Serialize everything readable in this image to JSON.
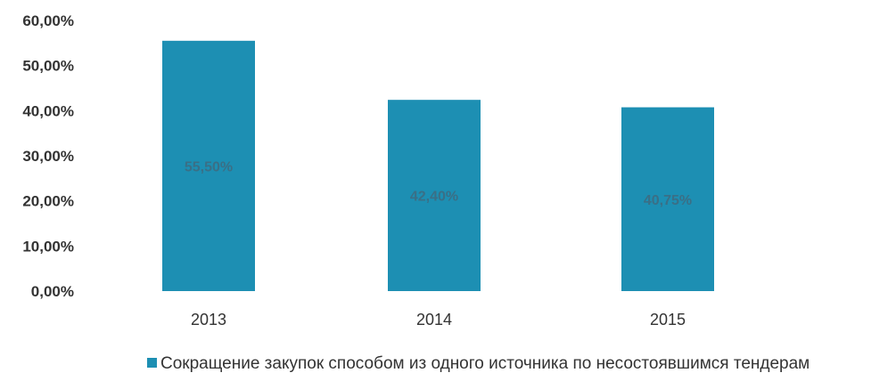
{
  "chart_data": {
    "type": "bar",
    "categories": [
      "2013",
      "2014",
      "2015"
    ],
    "series": [
      {
        "name": "Сокращение закупок способом из одного источника по несостоявшимся тендерам",
        "values": [
          55.5,
          42.4,
          40.75
        ],
        "data_labels": [
          "55,50%",
          "42,40%",
          "40,75%"
        ]
      }
    ],
    "ylim": [
      0,
      60
    ],
    "y_ticks": [
      0,
      10,
      20,
      30,
      40,
      50,
      60
    ],
    "y_tick_labels": [
      "0,00%",
      "10,00%",
      "20,00%",
      "30,00%",
      "40,00%",
      "50,00%",
      "60,00%"
    ],
    "grid": false,
    "legend_position": "bottom",
    "colors": {
      "bar": "#1d8fb3",
      "data_label": "#3a6f86",
      "axis_text": "#333333"
    }
  }
}
